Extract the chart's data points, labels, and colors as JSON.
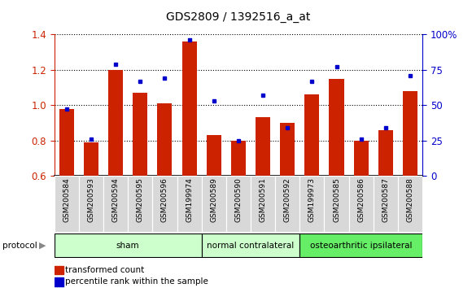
{
  "title": "GDS2809 / 1392516_a_at",
  "samples": [
    "GSM200584",
    "GSM200593",
    "GSM200594",
    "GSM200595",
    "GSM200596",
    "GSM199974",
    "GSM200589",
    "GSM200590",
    "GSM200591",
    "GSM200592",
    "GSM199973",
    "GSM200585",
    "GSM200586",
    "GSM200587",
    "GSM200588"
  ],
  "transformed_count": [
    0.98,
    0.79,
    1.2,
    1.07,
    1.01,
    1.36,
    0.83,
    0.8,
    0.93,
    0.9,
    1.06,
    1.15,
    0.8,
    0.86,
    1.08
  ],
  "percentile_rank": [
    47,
    26,
    79,
    67,
    69,
    96,
    53,
    25,
    57,
    34,
    67,
    77,
    26,
    34,
    71
  ],
  "bar_color": "#cc2200",
  "dot_color": "#0000cc",
  "ylim_left": [
    0.6,
    1.4
  ],
  "ylim_right": [
    0,
    100
  ],
  "yticks_left": [
    0.6,
    0.8,
    1.0,
    1.2,
    1.4
  ],
  "yticks_right": [
    0,
    25,
    50,
    75,
    100
  ],
  "ytick_labels_right": [
    "0",
    "25",
    "50",
    "75",
    "100%"
  ],
  "group_rects": [
    {
      "label": "sham",
      "start": 0,
      "end": 5,
      "color": "#ccffcc"
    },
    {
      "label": "normal contralateral",
      "start": 6,
      "end": 9,
      "color": "#ccffcc"
    },
    {
      "label": "osteoarthritic ipsilateral",
      "start": 10,
      "end": 14,
      "color": "#66ee66"
    }
  ],
  "protocol_label": "protocol",
  "legend": [
    {
      "label": "transformed count",
      "color": "#cc2200"
    },
    {
      "label": "percentile rank within the sample",
      "color": "#0000cc"
    }
  ],
  "background_color": "#ffffff",
  "label_bg_color": "#d8d8d8",
  "plot_bg_color": "#ffffff"
}
